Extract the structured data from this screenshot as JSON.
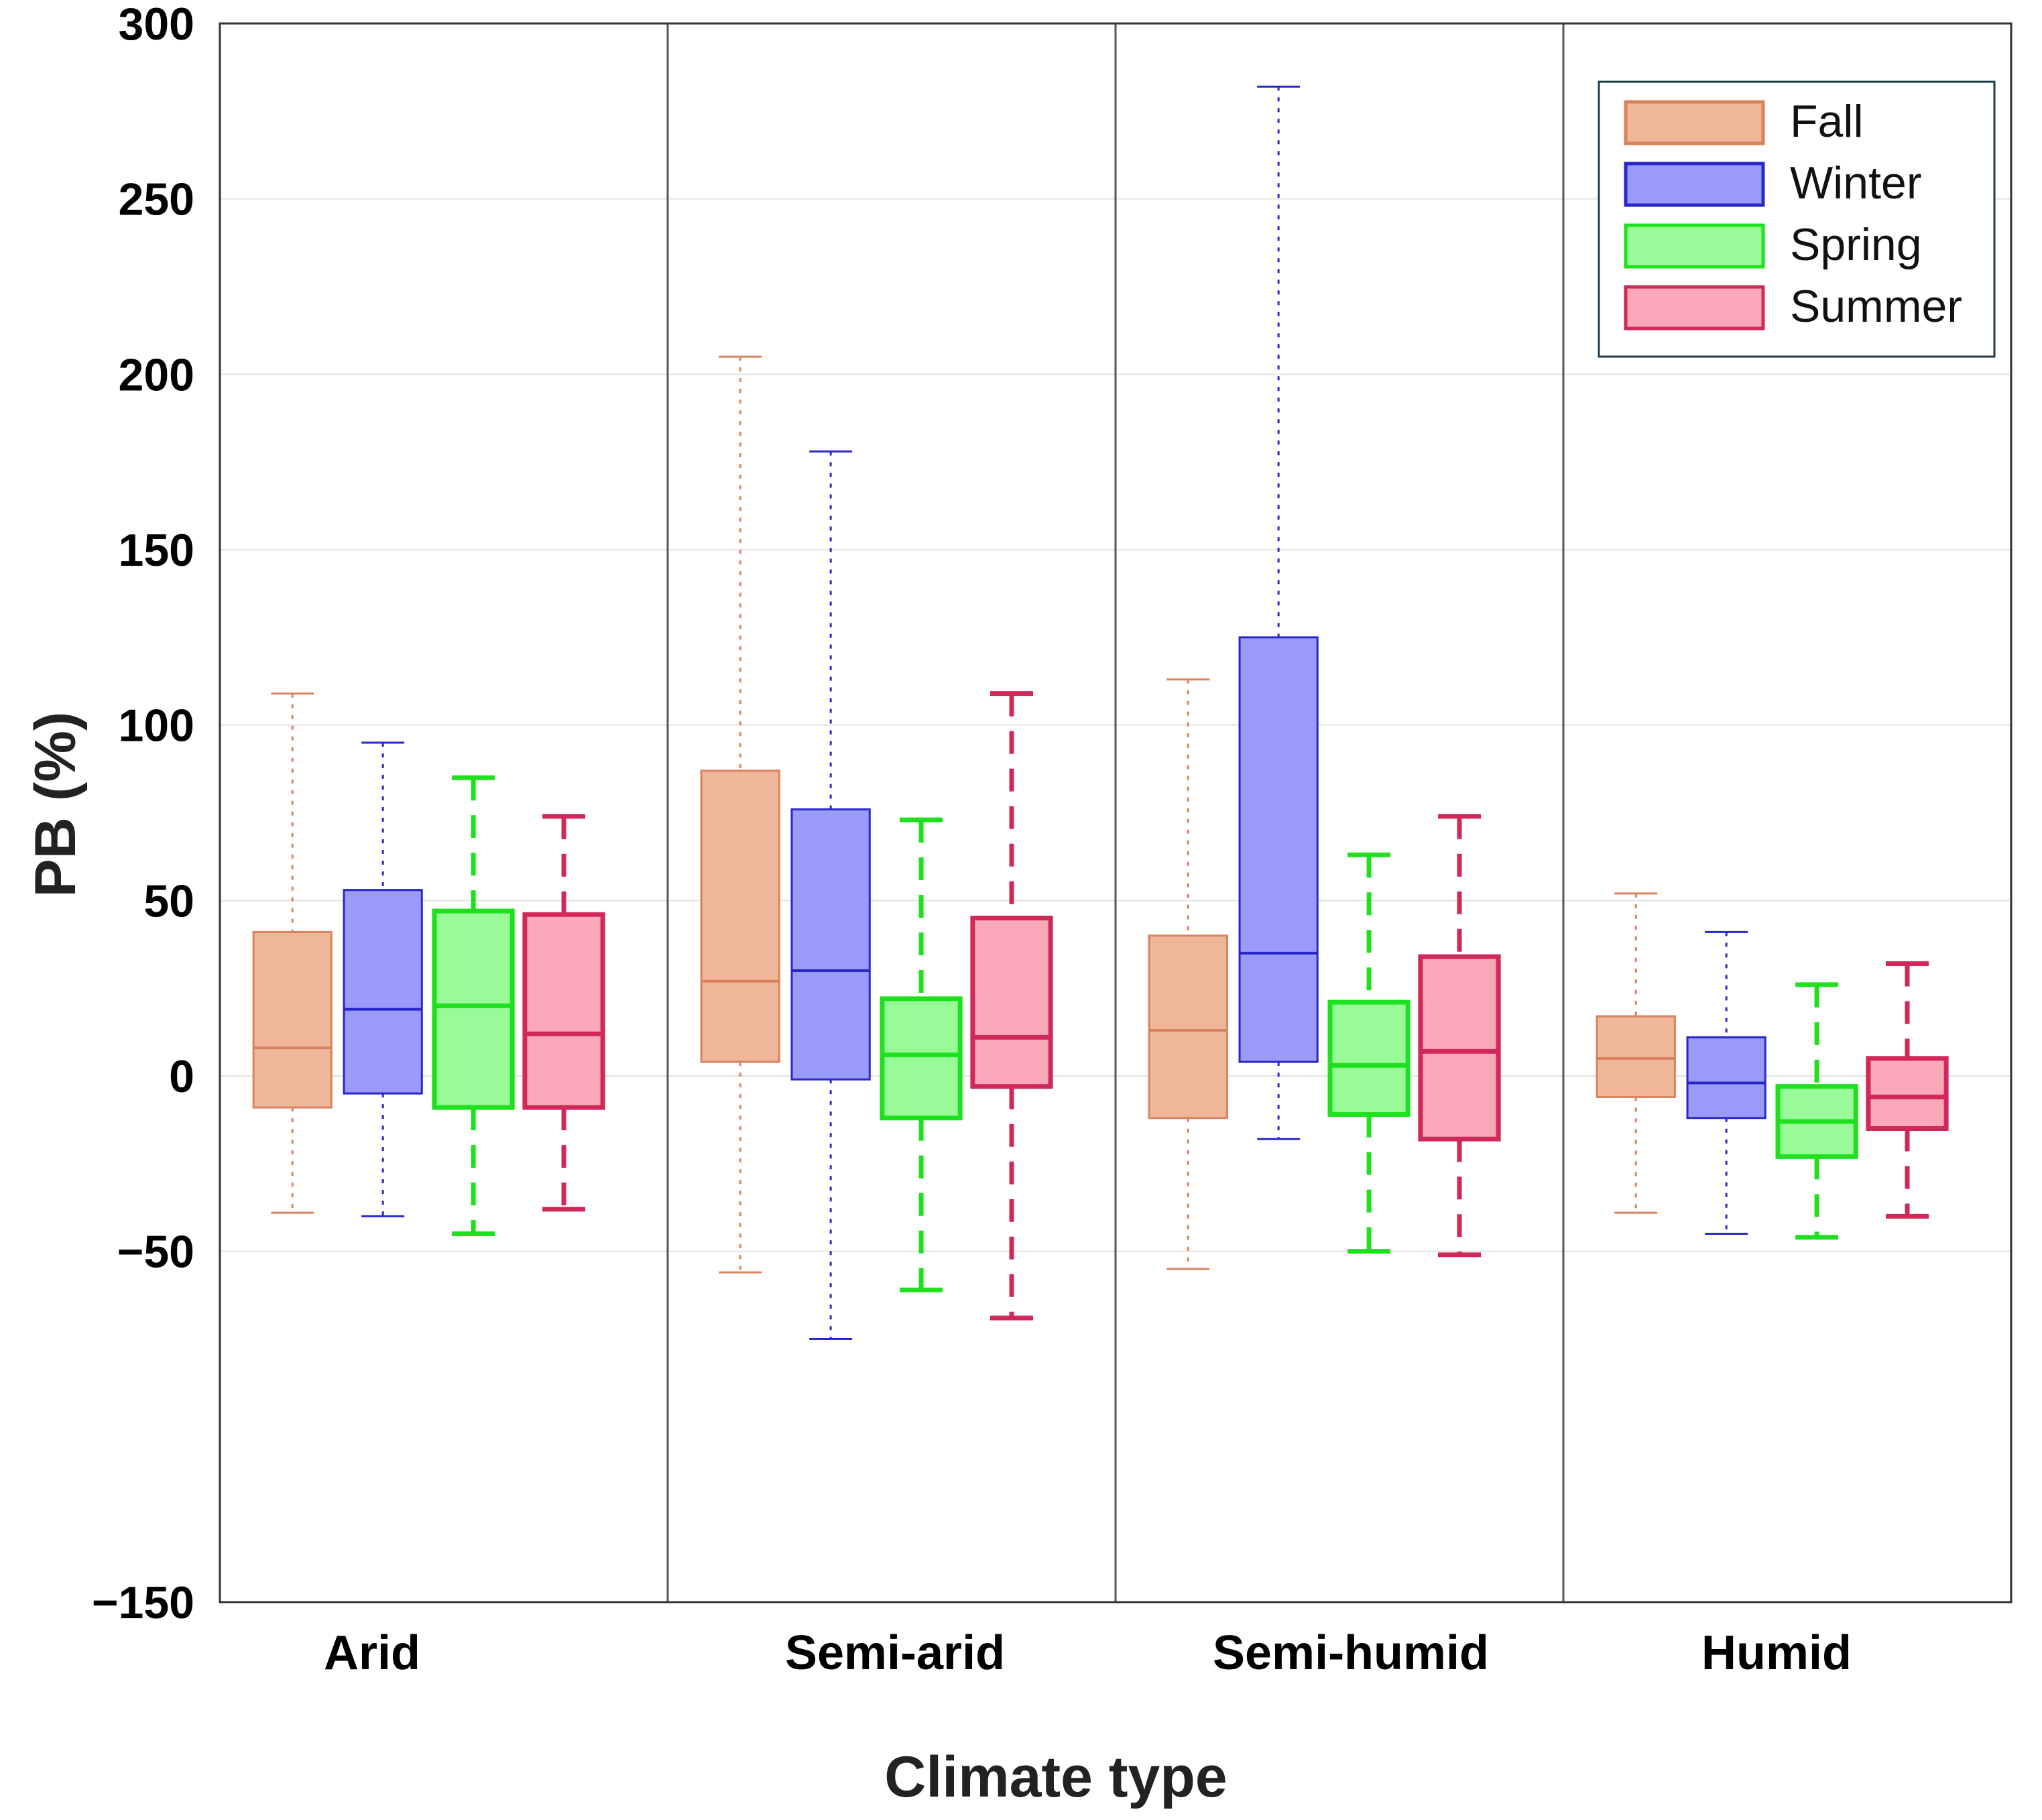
{
  "chart_data": {
    "type": "box",
    "title": "",
    "xlabel": "Climate type",
    "ylabel": "PB (%)",
    "ylim": [
      -150,
      300
    ],
    "yticks": [
      300,
      250,
      200,
      150,
      100,
      50,
      0,
      -50,
      -150
    ],
    "ytick_labels": [
      "300",
      "250",
      "200",
      "150",
      "100",
      "50",
      "0",
      "−50",
      "−150"
    ],
    "grid": true,
    "legend_position": "top-right",
    "categories": [
      "Arid",
      "Semi-arid",
      "Semi-humid",
      "Humid"
    ],
    "series": [
      {
        "name": "Fall",
        "fill": "#f0b699",
        "stroke": "#d9825e",
        "line_style": "dotted",
        "boxes": [
          {
            "whisker_low": -39,
            "q1": -9,
            "median": 8,
            "q3": 41,
            "whisker_high": 109
          },
          {
            "whisker_low": -56,
            "q1": 4,
            "median": 27,
            "q3": 87,
            "whisker_high": 205
          },
          {
            "whisker_low": -55,
            "q1": -12,
            "median": 13,
            "q3": 40,
            "whisker_high": 113
          },
          {
            "whisker_low": -39,
            "q1": -6,
            "median": 5,
            "q3": 17,
            "whisker_high": 52
          }
        ]
      },
      {
        "name": "Winter",
        "fill": "#9a9af8",
        "stroke": "#2828c8",
        "line_style": "dotted",
        "boxes": [
          {
            "whisker_low": -40,
            "q1": -5,
            "median": 19,
            "q3": 53,
            "whisker_high": 95
          },
          {
            "whisker_low": -75,
            "q1": -1,
            "median": 30,
            "q3": 76,
            "whisker_high": 178
          },
          {
            "whisker_low": -18,
            "q1": 4,
            "median": 35,
            "q3": 125,
            "whisker_high": 282
          },
          {
            "whisker_low": -45,
            "q1": -12,
            "median": -2,
            "q3": 11,
            "whisker_high": 41
          }
        ]
      },
      {
        "name": "Spring",
        "fill": "#98fb98",
        "stroke": "#1ee01e",
        "line_style": "dashed",
        "boxes": [
          {
            "whisker_low": -45,
            "q1": -9,
            "median": 20,
            "q3": 47,
            "whisker_high": 85
          },
          {
            "whisker_low": -61,
            "q1": -12,
            "median": 6,
            "q3": 22,
            "whisker_high": 73
          },
          {
            "whisker_low": -50,
            "q1": -11,
            "median": 3,
            "q3": 21,
            "whisker_high": 63
          },
          {
            "whisker_low": -46,
            "q1": -23,
            "median": -13,
            "q3": -3,
            "whisker_high": 26
          }
        ]
      },
      {
        "name": "Summer",
        "fill": "#f8a8b8",
        "stroke": "#d02858",
        "line_style": "dashed",
        "boxes": [
          {
            "whisker_low": -38,
            "q1": -9,
            "median": 12,
            "q3": 46,
            "whisker_high": 74
          },
          {
            "whisker_low": -69,
            "q1": -3,
            "median": 11,
            "q3": 45,
            "whisker_high": 109
          },
          {
            "whisker_low": -51,
            "q1": -18,
            "median": 7,
            "q3": 34,
            "whisker_high": 74
          },
          {
            "whisker_low": -40,
            "q1": -15,
            "median": -6,
            "q3": 5,
            "whisker_high": 32
          }
        ]
      }
    ]
  }
}
